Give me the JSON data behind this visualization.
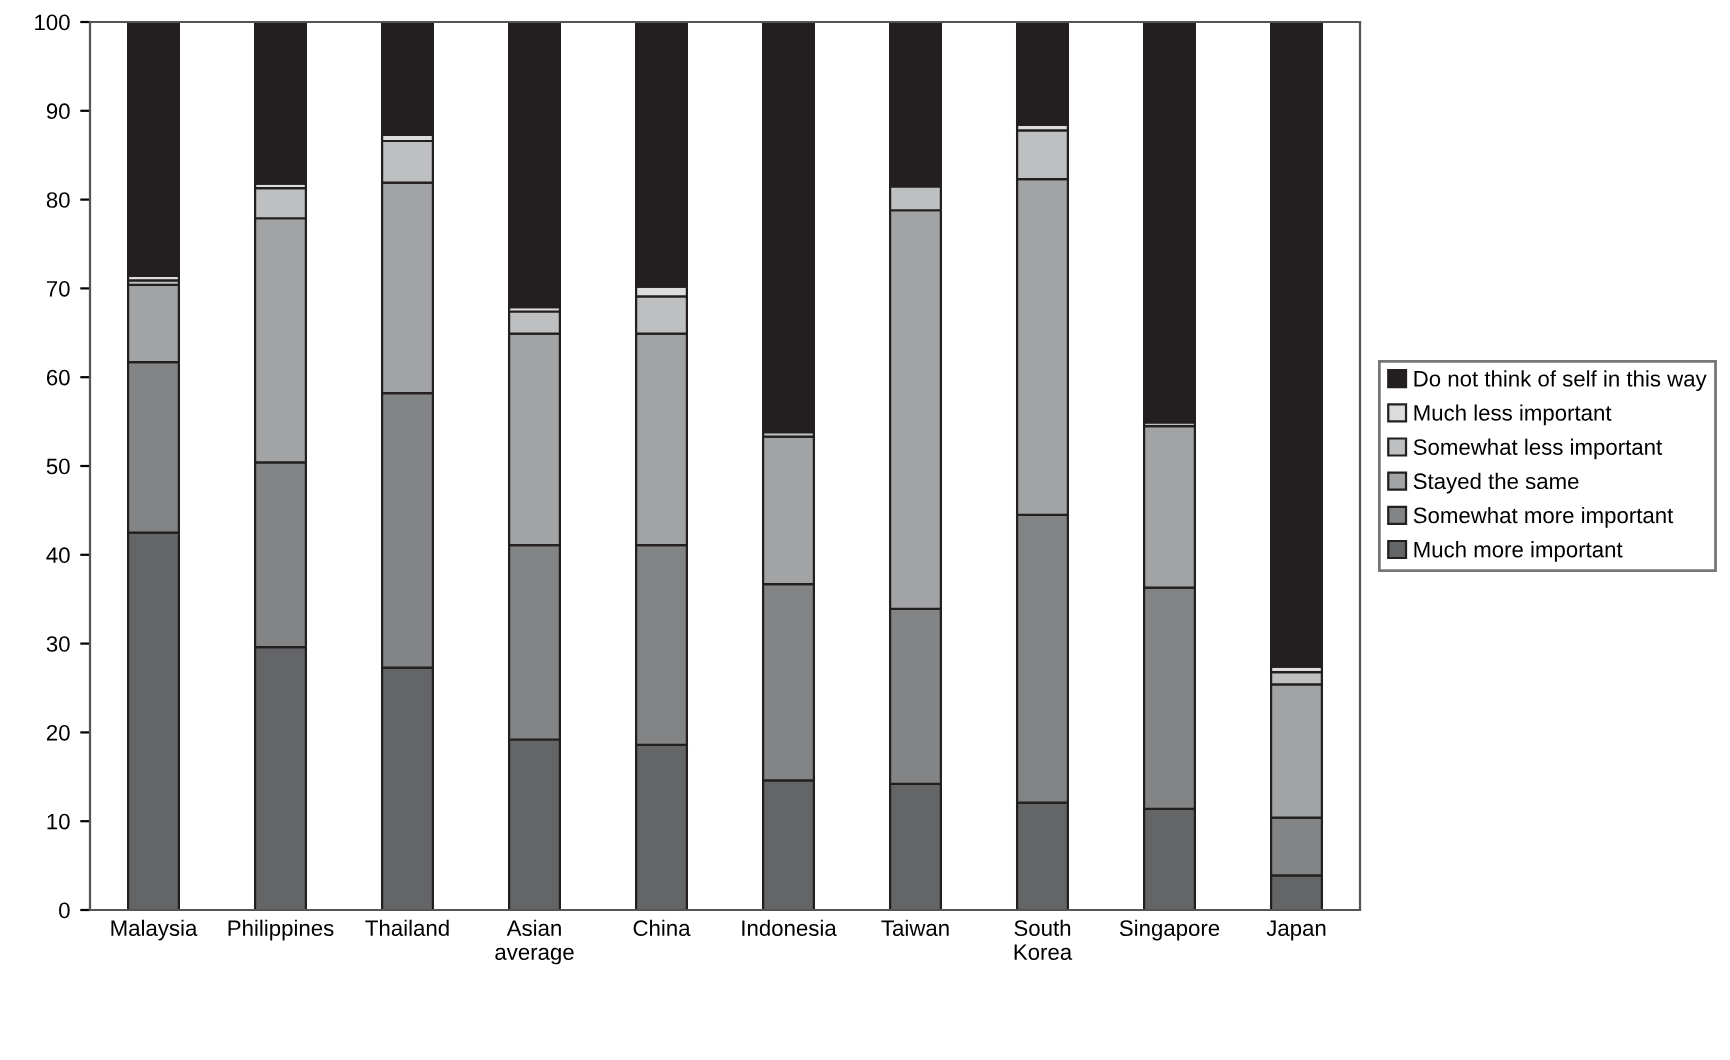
{
  "chart_data": {
    "type": "bar",
    "stacked": true,
    "categories": [
      "Malaysia",
      "Philippines",
      "Thailand",
      "Asian\naverage",
      "China",
      "Indonesia",
      "Taiwan",
      "South\nKorea",
      "Singapore",
      "Japan"
    ],
    "series": [
      {
        "name": "Much more important",
        "color": "#646566",
        "values": [
          42.5,
          29.6,
          27.3,
          19.2,
          18.6,
          14.6,
          14.2,
          12.1,
          11.4,
          3.9
        ]
      },
      {
        "name": "Somewhat more important",
        "color": "#838485",
        "values": [
          19.2,
          20.8,
          30.9,
          21.9,
          22.5,
          22.1,
          19.7,
          32.4,
          24.9,
          6.5
        ]
      },
      {
        "name": "Stayed the same",
        "color": "#a2a3a4",
        "values": [
          8.7,
          27.5,
          23.7,
          23.8,
          23.8,
          16.6,
          44.9,
          37.8,
          18.2,
          15.0
        ]
      },
      {
        "name": "Somewhat less important",
        "color": "#bebfc0",
        "values": [
          0.5,
          3.4,
          4.7,
          2.5,
          4.2,
          0.5,
          2.7,
          5.5,
          0.4,
          1.4
        ]
      },
      {
        "name": "Much less important",
        "color": "#dcdcdc",
        "values": [
          0.5,
          0.5,
          0.7,
          0.5,
          1.1,
          null,
          null,
          0.6,
          null,
          0.6
        ]
      },
      {
        "name": "Do not think of self in this way",
        "color": "#231f20",
        "values": [
          28.6,
          18.2,
          12.7,
          32.1,
          29.8,
          46.2,
          18.5,
          11.6,
          45.1,
          72.6
        ]
      }
    ],
    "ylim": [
      0,
      100
    ],
    "yticks": [
      0,
      10,
      20,
      30,
      40,
      50,
      60,
      70,
      80,
      90,
      100
    ],
    "legend": "right",
    "grid": false
  }
}
